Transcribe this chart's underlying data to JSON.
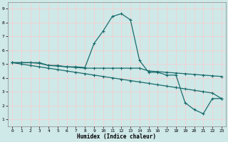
{
  "xlabel": "Humidex (Indice chaleur)",
  "bg_color": "#cfe8e8",
  "grid_color": "#f5d0d0",
  "line_color": "#1a6b6b",
  "xlim": [
    -0.5,
    23.5
  ],
  "ylim": [
    0.5,
    9.5
  ],
  "xticks": [
    0,
    1,
    2,
    3,
    4,
    5,
    6,
    7,
    8,
    9,
    10,
    11,
    12,
    13,
    14,
    15,
    16,
    17,
    18,
    19,
    20,
    21,
    22,
    23
  ],
  "yticks": [
    1,
    2,
    3,
    4,
    5,
    6,
    7,
    8,
    9
  ],
  "line1_x": [
    0,
    1,
    2,
    3,
    4,
    5,
    6,
    7,
    8,
    9,
    10,
    11,
    12,
    13,
    14,
    15,
    16,
    17,
    18,
    19,
    20,
    21,
    22,
    23
  ],
  "line1_y": [
    5.1,
    5.1,
    5.1,
    5.1,
    4.9,
    4.9,
    4.8,
    4.8,
    4.75,
    6.5,
    7.4,
    8.45,
    8.65,
    8.2,
    5.25,
    4.4,
    4.4,
    4.2,
    4.2,
    2.2,
    1.7,
    1.4,
    2.5,
    2.5
  ],
  "line2_x": [
    0,
    1,
    2,
    3,
    4,
    5,
    6,
    7,
    8,
    9,
    10,
    11,
    12,
    13,
    14,
    15,
    16,
    17,
    18,
    19,
    20,
    21,
    22,
    23
  ],
  "line2_y": [
    5.1,
    5.1,
    5.1,
    5.05,
    4.9,
    4.85,
    4.8,
    4.75,
    4.7,
    4.7,
    4.7,
    4.7,
    4.7,
    4.7,
    4.7,
    4.5,
    4.45,
    4.4,
    4.35,
    4.3,
    4.25,
    4.2,
    4.15,
    4.1
  ],
  "line3_x": [
    0,
    1,
    2,
    3,
    4,
    5,
    6,
    7,
    8,
    9,
    10,
    11,
    12,
    13,
    14,
    15,
    16,
    17,
    18,
    19,
    20,
    21,
    22,
    23
  ],
  "line3_y": [
    5.1,
    5.0,
    4.9,
    4.8,
    4.7,
    4.6,
    4.5,
    4.4,
    4.3,
    4.2,
    4.1,
    4.0,
    3.9,
    3.8,
    3.7,
    3.6,
    3.5,
    3.4,
    3.3,
    3.2,
    3.1,
    3.0,
    2.9,
    2.5
  ]
}
